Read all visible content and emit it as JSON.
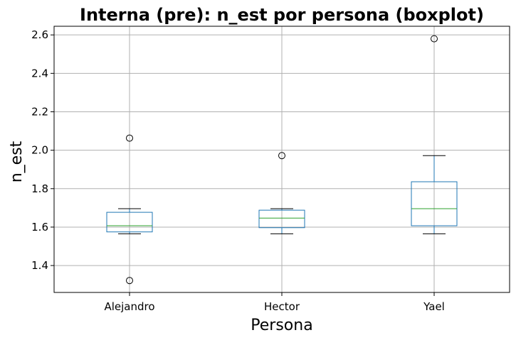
{
  "chart_data": {
    "type": "boxplot",
    "title": "Interna (pre): n_est por persona (boxplot)",
    "xlabel": "Persona",
    "ylabel": "n_est",
    "categories": [
      "Alejandro",
      "Hector",
      "Yael"
    ],
    "ylim": [
      1.26,
      2.645
    ],
    "yticks": [
      1.4,
      1.6,
      1.8,
      2.0,
      2.2,
      2.4,
      2.6
    ],
    "ytick_labels": [
      "1.4",
      "1.6",
      "1.8",
      "2.0",
      "2.2",
      "2.4",
      "2.6"
    ],
    "grid": true,
    "series": [
      {
        "category": "Alejandro",
        "whisker_low": 1.565,
        "q1": 1.575,
        "median": 1.607,
        "q3": 1.677,
        "whisker_high": 1.696,
        "outliers": [
          2.063,
          1.322
        ]
      },
      {
        "category": "Hector",
        "whisker_low": 1.565,
        "q1": 1.597,
        "median": 1.647,
        "q3": 1.688,
        "whisker_high": 1.696,
        "outliers": [
          1.972
        ]
      },
      {
        "category": "Yael",
        "whisker_low": 1.565,
        "q1": 1.607,
        "median": 1.696,
        "q3": 1.836,
        "whisker_high": 1.972,
        "outliers": [
          2.58
        ]
      }
    ],
    "colors": {
      "box": "#1f77b4",
      "median": "#2ca02c",
      "grid": "#b0b0b0",
      "whisker": "#000000",
      "outlier": "#000000"
    }
  }
}
